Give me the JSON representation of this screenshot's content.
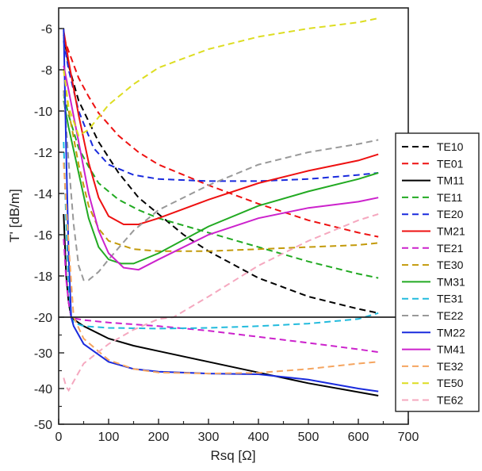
{
  "chart_data": {
    "type": "line",
    "title": "",
    "xlabel": "Rsq [Ω]",
    "ylabel": "T' [dB/m]",
    "xlim": [
      0,
      700
    ],
    "ylim_upper": [
      -20,
      -5
    ],
    "ylim_lower": [
      -50,
      -20
    ],
    "x_ticks": [
      "0",
      "100",
      "200",
      "300",
      "400",
      "500",
      "600",
      "700"
    ],
    "y_ticks_upper": [
      "-6",
      "-8",
      "-10",
      "-12",
      "-14",
      "-16",
      "-18",
      "-20"
    ],
    "y_ticks_lower": [
      "-30",
      "-40",
      "-50"
    ],
    "grid": false,
    "legend_position": "right",
    "colors": {
      "axis": "#222222",
      "TE10": "#000000",
      "TE01": "#ee1111",
      "TM11": "#000000",
      "TE11": "#22aa22",
      "TE20": "#1a2bdd",
      "TM21": "#ee1111",
      "TE21": "#cc22cc",
      "TE30": "#c39a0a",
      "TM31": "#22aa22",
      "TE31": "#22bbdd",
      "TE22": "#999999",
      "TM22": "#1a2bdd",
      "TM41": "#cc22cc",
      "TE32": "#f5a560",
      "TE50": "#dddd22",
      "TE62": "#f5a8bf"
    },
    "series": [
      {
        "name": "TE10",
        "style": "dashed",
        "points": [
          [
            10,
            -6.3
          ],
          [
            20,
            -7.8
          ],
          [
            40,
            -9.5
          ],
          [
            80,
            -11.5
          ],
          [
            120,
            -13.0
          ],
          [
            160,
            -14.2
          ],
          [
            200,
            -15.0
          ],
          [
            250,
            -16.0
          ],
          [
            300,
            -16.8
          ],
          [
            400,
            -18.1
          ],
          [
            500,
            -19.0
          ],
          [
            600,
            -19.6
          ],
          [
            640,
            -19.8
          ]
        ]
      },
      {
        "name": "TE01",
        "style": "dashed",
        "points": [
          [
            10,
            -6.4
          ],
          [
            20,
            -7.1
          ],
          [
            40,
            -8.4
          ],
          [
            60,
            -9.3
          ],
          [
            80,
            -10.1
          ],
          [
            120,
            -11.2
          ],
          [
            160,
            -12.0
          ],
          [
            200,
            -12.6
          ],
          [
            300,
            -13.6
          ],
          [
            400,
            -14.5
          ],
          [
            500,
            -15.3
          ],
          [
            600,
            -15.9
          ],
          [
            640,
            -16.1
          ]
        ]
      },
      {
        "name": "TM11",
        "style": "solid",
        "points": [
          [
            10,
            -15.0
          ],
          [
            15,
            -18.0
          ],
          [
            20,
            -19.3
          ],
          [
            25,
            -20.0
          ],
          [
            30,
            -20.6
          ],
          [
            50,
            -22.5
          ],
          [
            100,
            -26.0
          ],
          [
            150,
            -28.0
          ],
          [
            200,
            -29.5
          ],
          [
            300,
            -32.5
          ],
          [
            400,
            -35.5
          ],
          [
            500,
            -38.5
          ],
          [
            600,
            -41.0
          ],
          [
            640,
            -42.0
          ]
        ]
      },
      {
        "name": "TE11",
        "style": "dashed",
        "points": [
          [
            10,
            -9.2
          ],
          [
            20,
            -10.2
          ],
          [
            40,
            -11.8
          ],
          [
            60,
            -12.7
          ],
          [
            80,
            -13.5
          ],
          [
            120,
            -14.3
          ],
          [
            160,
            -14.8
          ],
          [
            200,
            -15.2
          ],
          [
            300,
            -15.9
          ],
          [
            400,
            -16.6
          ],
          [
            500,
            -17.3
          ],
          [
            600,
            -17.9
          ],
          [
            640,
            -18.1
          ]
        ]
      },
      {
        "name": "TE20",
        "style": "dashed",
        "points": [
          [
            10,
            -6.6
          ],
          [
            20,
            -8.0
          ],
          [
            40,
            -10.0
          ],
          [
            70,
            -11.8
          ],
          [
            100,
            -12.6
          ],
          [
            150,
            -13.1
          ],
          [
            200,
            -13.3
          ],
          [
            300,
            -13.4
          ],
          [
            400,
            -13.4
          ],
          [
            500,
            -13.3
          ],
          [
            600,
            -13.1
          ],
          [
            640,
            -13.0
          ]
        ]
      },
      {
        "name": "TM21",
        "style": "solid",
        "points": [
          [
            10,
            -6.1
          ],
          [
            20,
            -7.6
          ],
          [
            40,
            -10.2
          ],
          [
            60,
            -12.5
          ],
          [
            80,
            -14.2
          ],
          [
            100,
            -15.1
          ],
          [
            130,
            -15.5
          ],
          [
            160,
            -15.5
          ],
          [
            200,
            -15.2
          ],
          [
            300,
            -14.3
          ],
          [
            400,
            -13.5
          ],
          [
            500,
            -12.9
          ],
          [
            600,
            -12.4
          ],
          [
            640,
            -12.1
          ]
        ]
      },
      {
        "name": "TE21",
        "style": "dashed",
        "points": [
          [
            10,
            -16.2
          ],
          [
            15,
            -18.2
          ],
          [
            20,
            -19.3
          ],
          [
            25,
            -20.0
          ],
          [
            30,
            -20.3
          ],
          [
            50,
            -20.8
          ],
          [
            100,
            -21.5
          ],
          [
            200,
            -22.5
          ],
          [
            300,
            -23.8
          ],
          [
            400,
            -25.5
          ],
          [
            500,
            -27.2
          ],
          [
            600,
            -29.0
          ],
          [
            640,
            -29.8
          ]
        ]
      },
      {
        "name": "TE30",
        "style": "dashed",
        "points": [
          [
            10,
            -8.0
          ],
          [
            20,
            -10.0
          ],
          [
            40,
            -12.6
          ],
          [
            60,
            -14.6
          ],
          [
            80,
            -15.7
          ],
          [
            100,
            -16.3
          ],
          [
            150,
            -16.7
          ],
          [
            200,
            -16.8
          ],
          [
            300,
            -16.8
          ],
          [
            400,
            -16.7
          ],
          [
            500,
            -16.6
          ],
          [
            600,
            -16.5
          ],
          [
            640,
            -16.4
          ]
        ]
      },
      {
        "name": "TM31",
        "style": "solid",
        "points": [
          [
            10,
            -9.5
          ],
          [
            20,
            -10.8
          ],
          [
            40,
            -13.0
          ],
          [
            60,
            -15.2
          ],
          [
            80,
            -16.6
          ],
          [
            100,
            -17.2
          ],
          [
            125,
            -17.4
          ],
          [
            150,
            -17.4
          ],
          [
            200,
            -16.9
          ],
          [
            300,
            -15.6
          ],
          [
            400,
            -14.6
          ],
          [
            500,
            -13.9
          ],
          [
            600,
            -13.3
          ],
          [
            640,
            -13.0
          ]
        ]
      },
      {
        "name": "TE31",
        "style": "dashed",
        "points": [
          [
            10,
            -11.5
          ],
          [
            15,
            -15.5
          ],
          [
            20,
            -18.5
          ],
          [
            25,
            -20.0
          ],
          [
            30,
            -21.5
          ],
          [
            50,
            -22.5
          ],
          [
            100,
            -23.0
          ],
          [
            200,
            -23.2
          ],
          [
            300,
            -23.0
          ],
          [
            400,
            -22.5
          ],
          [
            500,
            -21.8
          ],
          [
            600,
            -20.5
          ],
          [
            640,
            -19.8
          ]
        ]
      },
      {
        "name": "TE22",
        "style": "dashed",
        "points": [
          [
            10,
            -9.0
          ],
          [
            20,
            -12.5
          ],
          [
            30,
            -15.5
          ],
          [
            40,
            -17.5
          ],
          [
            50,
            -18.2
          ],
          [
            60,
            -18.2
          ],
          [
            80,
            -17.8
          ],
          [
            100,
            -17.2
          ],
          [
            150,
            -15.8
          ],
          [
            200,
            -14.8
          ],
          [
            300,
            -13.6
          ],
          [
            400,
            -12.6
          ],
          [
            500,
            -12.0
          ],
          [
            600,
            -11.6
          ],
          [
            640,
            -11.4
          ]
        ]
      },
      {
        "name": "TM22",
        "style": "solid",
        "points": [
          [
            10,
            -6.0
          ],
          [
            15,
            -12.0
          ],
          [
            20,
            -17.0
          ],
          [
            25,
            -20.0
          ],
          [
            30,
            -22.5
          ],
          [
            50,
            -27.5
          ],
          [
            100,
            -32.5
          ],
          [
            150,
            -34.5
          ],
          [
            200,
            -35.3
          ],
          [
            300,
            -35.8
          ],
          [
            400,
            -36.0
          ],
          [
            500,
            -37.5
          ],
          [
            600,
            -40.0
          ],
          [
            640,
            -40.8
          ]
        ]
      },
      {
        "name": "TM41",
        "style": "solid",
        "points": [
          [
            10,
            -7.8
          ],
          [
            20,
            -9.0
          ],
          [
            40,
            -11.5
          ],
          [
            60,
            -14.0
          ],
          [
            80,
            -15.8
          ],
          [
            100,
            -16.9
          ],
          [
            130,
            -17.6
          ],
          [
            160,
            -17.7
          ],
          [
            200,
            -17.2
          ],
          [
            300,
            -16.0
          ],
          [
            400,
            -15.2
          ],
          [
            500,
            -14.7
          ],
          [
            600,
            -14.4
          ],
          [
            640,
            -14.2
          ]
        ]
      },
      {
        "name": "TE32",
        "style": "dashed",
        "points": [
          [
            10,
            -12.5
          ],
          [
            20,
            -16.5
          ],
          [
            30,
            -20.0
          ],
          [
            50,
            -26.0
          ],
          [
            100,
            -32.0
          ],
          [
            150,
            -34.5
          ],
          [
            200,
            -35.5
          ],
          [
            300,
            -35.8
          ],
          [
            400,
            -35.6
          ],
          [
            500,
            -34.5
          ],
          [
            600,
            -33.0
          ],
          [
            640,
            -32.5
          ]
        ]
      },
      {
        "name": "TE50",
        "style": "dashed",
        "points": [
          [
            10,
            -8.0
          ],
          [
            20,
            -9.8
          ],
          [
            40,
            -11.2
          ],
          [
            60,
            -10.9
          ],
          [
            80,
            -10.3
          ],
          [
            100,
            -9.7
          ],
          [
            150,
            -8.7
          ],
          [
            200,
            -7.9
          ],
          [
            300,
            -7.0
          ],
          [
            400,
            -6.4
          ],
          [
            500,
            -6.0
          ],
          [
            600,
            -5.7
          ],
          [
            640,
            -5.5
          ]
        ]
      },
      {
        "name": "TE62",
        "style": "dashed",
        "points": [
          [
            10,
            -37.0
          ],
          [
            15,
            -39.5
          ],
          [
            20,
            -40.5
          ],
          [
            30,
            -38.0
          ],
          [
            50,
            -33.0
          ],
          [
            100,
            -27.5
          ],
          [
            150,
            -23.5
          ],
          [
            200,
            -20.5
          ],
          [
            230,
            -20.0
          ],
          [
            300,
            -19.0
          ],
          [
            400,
            -17.5
          ],
          [
            500,
            -16.3
          ],
          [
            600,
            -15.3
          ],
          [
            640,
            -15.0
          ]
        ]
      }
    ]
  }
}
